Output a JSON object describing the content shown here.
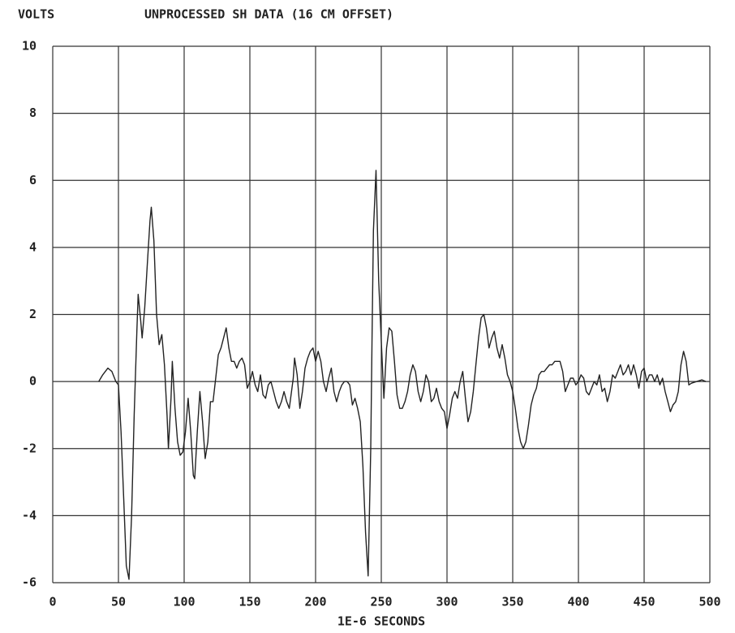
{
  "chart_data": {
    "type": "line",
    "title": "UNPROCESSED SH DATA (16 CM OFFSET)",
    "ylabel": "VOLTS",
    "xlabel": "1E-6 SECONDS",
    "xlim": [
      0,
      500
    ],
    "xticks": [
      0,
      50,
      100,
      150,
      200,
      250,
      300,
      350,
      400,
      450,
      500
    ],
    "ylim": [
      -6,
      10
    ],
    "yticks": [
      -6,
      -4,
      -2,
      0,
      2,
      4,
      6,
      8,
      10
    ],
    "grid": true,
    "x": [
      35,
      38,
      42,
      45,
      48,
      50,
      52,
      54,
      56,
      58,
      60,
      62,
      64,
      65,
      67,
      68,
      70,
      72,
      74,
      75,
      77,
      79,
      81,
      83,
      85,
      87,
      88,
      90,
      91,
      93,
      95,
      97,
      99,
      101,
      103,
      105,
      107,
      108,
      110,
      112,
      114,
      116,
      118,
      120,
      122,
      124,
      126,
      128,
      130,
      132,
      134,
      136,
      138,
      140,
      142,
      144,
      146,
      148,
      150,
      152,
      154,
      156,
      158,
      160,
      162,
      164,
      166,
      168,
      170,
      172,
      174,
      176,
      178,
      180,
      183,
      184,
      186,
      188,
      190,
      192,
      194,
      196,
      198,
      200,
      202,
      204,
      206,
      208,
      210,
      212,
      214,
      216,
      218,
      220,
      222,
      224,
      226,
      228,
      230,
      232,
      234,
      236,
      238,
      240,
      242,
      243,
      244,
      246,
      248,
      250,
      252,
      254,
      256,
      258,
      260,
      262,
      264,
      266,
      268,
      270,
      272,
      274,
      276,
      278,
      280,
      282,
      284,
      286,
      288,
      290,
      292,
      294,
      296,
      298,
      300,
      302,
      304,
      306,
      308,
      310,
      312,
      314,
      316,
      318,
      320,
      322,
      324,
      326,
      328,
      330,
      332,
      334,
      336,
      338,
      340,
      342,
      344,
      346,
      348,
      350,
      352,
      354,
      356,
      358,
      360,
      362,
      364,
      366,
      368,
      370,
      372,
      374,
      376,
      378,
      380,
      382,
      384,
      386,
      388,
      390,
      392,
      394,
      396,
      398,
      400,
      402,
      404,
      406,
      408,
      410,
      412,
      414,
      416,
      418,
      420,
      422,
      424,
      426,
      428,
      430,
      432,
      434,
      436,
      438,
      440,
      442,
      444,
      446,
      448,
      450,
      452,
      454,
      456,
      458,
      460,
      462,
      464,
      466,
      468,
      470,
      472,
      474,
      476,
      478,
      480,
      482,
      484,
      486,
      490,
      494,
      497
    ],
    "series": [
      {
        "name": "SH",
        "color": "#222222",
        "values": [
          0,
          0.2,
          0.4,
          0.3,
          0.0,
          -0.1,
          -1.5,
          -3.5,
          -5.5,
          -5.9,
          -4,
          -1,
          1.5,
          2.6,
          1.8,
          1.3,
          2.2,
          3.5,
          4.8,
          5.2,
          4.2,
          2,
          1.1,
          1.4,
          0.5,
          -1.0,
          -2.0,
          -0.5,
          0.6,
          -0.8,
          -1.8,
          -2.2,
          -2.1,
          -1.5,
          -0.5,
          -1.5,
          -2.8,
          -2.9,
          -1.5,
          -0.3,
          -1.2,
          -2.3,
          -1.8,
          -0.6,
          -0.6,
          0.1,
          0.8,
          1.0,
          1.3,
          1.6,
          1.0,
          0.6,
          0.6,
          0.4,
          0.6,
          0.7,
          0.5,
          -0.2,
          0.0,
          0.3,
          -0.1,
          -0.3,
          0.2,
          -0.4,
          -0.5,
          -0.1,
          0.0,
          -0.3,
          -0.6,
          -0.8,
          -0.6,
          -0.3,
          -0.6,
          -0.8,
          0.1,
          0.7,
          0.2,
          -0.8,
          -0.3,
          0.4,
          0.7,
          0.9,
          1.0,
          0.6,
          0.9,
          0.6,
          0.0,
          -0.3,
          0.1,
          0.4,
          -0.3,
          -0.6,
          -0.3,
          -0.1,
          0.0,
          0.0,
          -0.1,
          -0.7,
          -0.5,
          -0.8,
          -1.2,
          -2.5,
          -4.5,
          -5.8,
          -2,
          1.5,
          4.5,
          6.3,
          3,
          1.2,
          -0.5,
          1.0,
          1.6,
          1.5,
          0.6,
          -0.4,
          -0.8,
          -0.8,
          -0.6,
          -0.3,
          0.2,
          0.5,
          0.3,
          -0.3,
          -0.6,
          -0.3,
          0.2,
          0.0,
          -0.6,
          -0.5,
          -0.2,
          -0.6,
          -0.8,
          -0.9,
          -1.4,
          -1.0,
          -0.5,
          -0.3,
          -0.5,
          0.0,
          0.3,
          -0.5,
          -1.2,
          -0.9,
          -0.3,
          0.5,
          1.3,
          1.9,
          2.0,
          1.6,
          1.0,
          1.3,
          1.5,
          1.0,
          0.7,
          1.1,
          0.7,
          0.2,
          0.0,
          -0.3,
          -0.8,
          -1.4,
          -1.8,
          -2.0,
          -1.8,
          -1.3,
          -0.7,
          -0.4,
          -0.2,
          0.2,
          0.3,
          0.3,
          0.4,
          0.5,
          0.5,
          0.6,
          0.6,
          0.6,
          0.3,
          -0.3,
          -0.1,
          0.1,
          0.1,
          -0.1,
          0.0,
          0.2,
          0.1,
          -0.3,
          -0.4,
          -0.2,
          0.0,
          -0.1,
          0.2,
          -0.3,
          -0.2,
          -0.6,
          -0.3,
          0.2,
          0.1,
          0.3,
          0.5,
          0.2,
          0.3,
          0.5,
          0.2,
          0.5,
          0.2,
          -0.2,
          0.3,
          0.4,
          0.0,
          0.2,
          0.2,
          0.0,
          0.2,
          -0.1,
          0.1,
          -0.3,
          -0.6,
          -0.9,
          -0.7,
          -0.6,
          -0.3,
          0.5,
          0.9,
          0.6,
          -0.1,
          -0.05,
          0.0,
          0.05,
          0.0
        ]
      }
    ]
  }
}
